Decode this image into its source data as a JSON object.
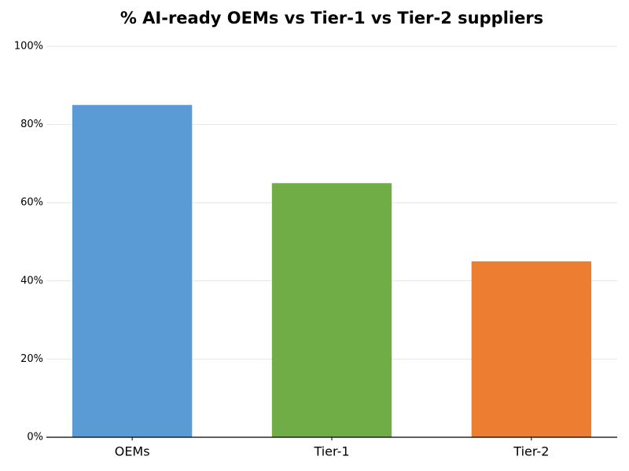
{
  "chart_data": {
    "type": "bar",
    "title": "% AI-ready OEMs vs Tier-1 vs Tier-2 suppliers",
    "categories": [
      "OEMs",
      "Tier-1",
      "Tier-2"
    ],
    "values": [
      85,
      65,
      45
    ],
    "colors": [
      "#5b9bd5",
      "#70ad47",
      "#ed7d31"
    ],
    "ylim": [
      0,
      100
    ],
    "yticks": [
      {
        "value": 0,
        "label": "0%"
      },
      {
        "value": 20,
        "label": "20%"
      },
      {
        "value": 40,
        "label": "40%"
      },
      {
        "value": 60,
        "label": "60%"
      },
      {
        "value": 80,
        "label": "80%"
      },
      {
        "value": 100,
        "label": "100%"
      }
    ],
    "grid": true
  }
}
